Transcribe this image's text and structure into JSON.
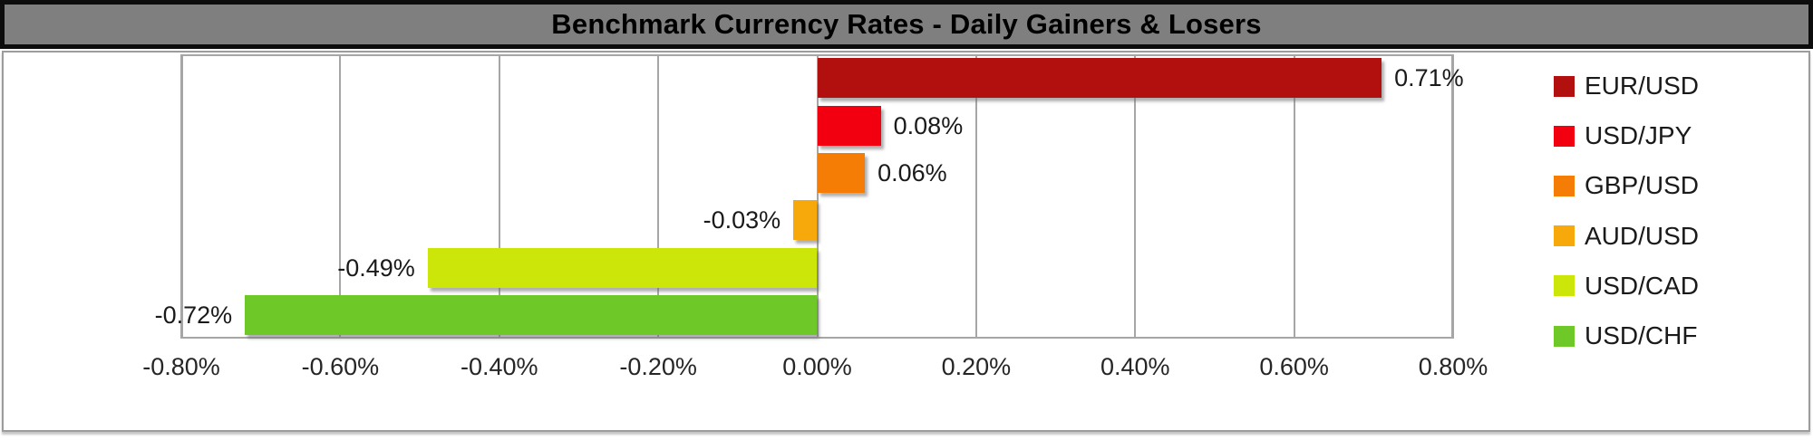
{
  "title": "Benchmark Currency Rates - Daily Gainers & Losers",
  "colors": {
    "title_bg": "#7f7f7f",
    "title_text": "#000000",
    "title_border": "#0d0d0d",
    "frame_border": "#9c9c9c",
    "grid": "#a6a6a6",
    "label_text": "#1a1a1a"
  },
  "chart_data": {
    "type": "bar",
    "orientation": "horizontal",
    "title": "Benchmark Currency Rates - Daily Gainers & Losers",
    "xlabel": "",
    "ylabel": "",
    "categories": [
      "EUR/USD",
      "USD/JPY",
      "GBP/USD",
      "AUD/USD",
      "USD/CAD",
      "USD/CHF"
    ],
    "values": [
      0.71,
      0.08,
      0.06,
      -0.03,
      -0.49,
      -0.72
    ],
    "value_labels": [
      "0.71%",
      "0.08%",
      "0.06%",
      "-0.03%",
      "-0.49%",
      "-0.72%"
    ],
    "bar_colors": [
      "#b20f0f",
      "#f2000f",
      "#f57d05",
      "#f7a80b",
      "#cde60a",
      "#6ec827"
    ],
    "xlim": [
      -0.8,
      0.8
    ],
    "x_ticks": [
      -0.8,
      -0.6,
      -0.4,
      -0.2,
      0.0,
      0.2,
      0.4,
      0.6,
      0.8
    ],
    "x_tick_labels": [
      "-0.80%",
      "-0.60%",
      "-0.40%",
      "-0.20%",
      "0.00%",
      "0.20%",
      "0.40%",
      "0.60%",
      "0.80%"
    ],
    "grid": "vertical",
    "legend_position": "right"
  }
}
